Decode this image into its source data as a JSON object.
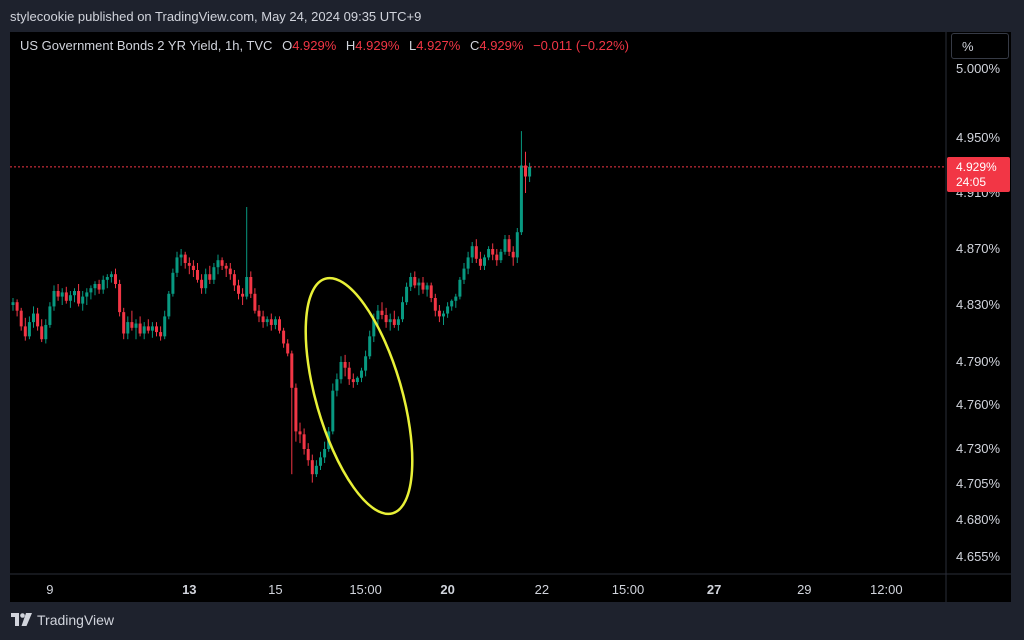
{
  "header": {
    "published": "stylecookie published on TradingView.com, May 24, 2024 09:35 UTC+9"
  },
  "legend": {
    "symbol": "US Government Bonds 2 YR Yield, 1h, TVC",
    "o_label": "O",
    "o_value": "4.929%",
    "h_label": "H",
    "h_value": "4.929%",
    "l_label": "L",
    "l_value": "4.927%",
    "c_label": "C",
    "c_value": "4.929%",
    "change": "−0.011 (−0.22%)"
  },
  "scale_button": "%",
  "price_tag": {
    "value": "4.929%",
    "countdown": "24:05"
  },
  "footer": {
    "brand": "TradingView"
  },
  "colors": {
    "up": "#089981",
    "down": "#f23645",
    "annotation": "#e8f037",
    "background": "#000000"
  },
  "chart_data": {
    "type": "candlestick",
    "timeframe": "1h",
    "y_axis": {
      "ticks": [
        5.0,
        4.95,
        4.91,
        4.87,
        4.83,
        4.79,
        4.76,
        4.73,
        4.705,
        4.68,
        4.655
      ],
      "tick_labels": [
        "5.000%",
        "4.950%",
        "4.910%",
        "4.870%",
        "4.830%",
        "4.790%",
        "4.760%",
        "4.730%",
        "4.705%",
        "4.680%",
        "4.655%"
      ],
      "scale": "non-linear"
    },
    "x_axis": {
      "tick_labels": [
        "9",
        "13",
        "15",
        "15:00",
        "20",
        "22",
        "15:00",
        "27",
        "29",
        "12:00"
      ],
      "bold": [
        false,
        true,
        false,
        false,
        true,
        false,
        false,
        true,
        false,
        false
      ],
      "tick_index": [
        9,
        43,
        64,
        86,
        106,
        129,
        150,
        171,
        193,
        213
      ]
    },
    "last_price": 4.929,
    "annotation": {
      "type": "ellipse",
      "color": "#e8f037",
      "label": ""
    },
    "candles": [
      [
        4.83,
        4.835,
        4.826,
        4.832
      ],
      [
        4.832,
        4.834,
        4.822,
        4.826
      ],
      [
        4.826,
        4.828,
        4.812,
        4.815
      ],
      [
        4.815,
        4.821,
        4.805,
        4.808
      ],
      [
        4.808,
        4.822,
        4.806,
        4.818
      ],
      [
        4.818,
        4.829,
        4.814,
        4.824
      ],
      [
        4.824,
        4.828,
        4.812,
        4.815
      ],
      [
        4.815,
        4.82,
        4.804,
        4.806
      ],
      [
        4.806,
        4.82,
        4.803,
        4.816
      ],
      [
        4.816,
        4.832,
        4.814,
        4.829
      ],
      [
        4.829,
        4.844,
        4.826,
        4.84
      ],
      [
        4.84,
        4.845,
        4.833,
        4.836
      ],
      [
        4.836,
        4.842,
        4.83,
        4.839
      ],
      [
        4.839,
        4.843,
        4.831,
        4.833
      ],
      [
        4.833,
        4.84,
        4.828,
        4.837
      ],
      [
        4.837,
        4.842,
        4.832,
        4.84
      ],
      [
        4.84,
        4.845,
        4.829,
        4.831
      ],
      [
        4.831,
        4.84,
        4.826,
        4.836
      ],
      [
        4.836,
        4.842,
        4.83,
        4.839
      ],
      [
        4.839,
        4.844,
        4.834,
        4.842
      ],
      [
        4.842,
        4.847,
        4.837,
        4.845
      ],
      [
        4.845,
        4.848,
        4.838,
        4.841
      ],
      [
        4.841,
        4.851,
        4.838,
        4.848
      ],
      [
        4.848,
        4.852,
        4.842,
        4.85
      ],
      [
        4.85,
        4.854,
        4.846,
        4.852
      ],
      [
        4.852,
        4.856,
        4.842,
        4.845
      ],
      [
        4.845,
        4.848,
        4.822,
        4.825
      ],
      [
        4.825,
        4.828,
        4.806,
        4.81
      ],
      [
        4.81,
        4.822,
        4.806,
        4.818
      ],
      [
        4.818,
        4.826,
        4.812,
        4.814
      ],
      [
        4.814,
        4.82,
        4.806,
        4.817
      ],
      [
        4.817,
        4.822,
        4.808,
        4.81
      ],
      [
        4.81,
        4.818,
        4.806,
        4.815
      ],
      [
        4.815,
        4.82,
        4.81,
        4.812
      ],
      [
        4.812,
        4.818,
        4.807,
        4.815
      ],
      [
        4.815,
        4.818,
        4.808,
        4.811
      ],
      [
        4.811,
        4.815,
        4.805,
        4.808
      ],
      [
        4.808,
        4.826,
        4.806,
        4.822
      ],
      [
        4.822,
        4.84,
        4.82,
        4.838
      ],
      [
        4.838,
        4.856,
        4.836,
        4.853
      ],
      [
        4.853,
        4.868,
        4.85,
        4.864
      ],
      [
        4.864,
        4.87,
        4.858,
        4.866
      ],
      [
        4.866,
        4.868,
        4.856,
        4.86
      ],
      [
        4.86,
        4.864,
        4.852,
        4.858
      ],
      [
        4.858,
        4.862,
        4.85,
        4.855
      ],
      [
        4.855,
        4.86,
        4.846,
        4.848
      ],
      [
        4.848,
        4.852,
        4.838,
        4.842
      ],
      [
        4.842,
        4.856,
        4.838,
        4.852
      ],
      [
        4.852,
        4.858,
        4.845,
        4.848
      ],
      [
        4.848,
        4.86,
        4.845,
        4.857
      ],
      [
        4.857,
        4.866,
        4.852,
        4.862
      ],
      [
        4.862,
        4.864,
        4.855,
        4.858
      ],
      [
        4.858,
        4.86,
        4.85,
        4.856
      ],
      [
        4.856,
        4.86,
        4.848,
        4.852
      ],
      [
        4.852,
        4.855,
        4.84,
        4.844
      ],
      [
        4.844,
        4.848,
        4.834,
        4.838
      ],
      [
        4.838,
        4.842,
        4.83,
        4.836
      ],
      [
        4.836,
        4.9,
        4.834,
        4.85
      ],
      [
        4.85,
        4.854,
        4.835,
        4.838
      ],
      [
        4.838,
        4.842,
        4.824,
        4.826
      ],
      [
        4.826,
        4.83,
        4.818,
        4.822
      ],
      [
        4.822,
        4.826,
        4.814,
        4.818
      ],
      [
        4.818,
        4.822,
        4.815,
        4.82
      ],
      [
        4.82,
        4.824,
        4.812,
        4.816
      ],
      [
        4.816,
        4.822,
        4.813,
        4.82
      ],
      [
        4.82,
        4.822,
        4.81,
        4.812
      ],
      [
        4.812,
        4.814,
        4.8,
        4.803
      ],
      [
        4.803,
        4.806,
        4.794,
        4.796
      ],
      [
        4.796,
        4.798,
        4.712,
        4.772
      ],
      [
        4.772,
        4.775,
        4.735,
        4.742
      ],
      [
        4.742,
        4.748,
        4.734,
        4.74
      ],
      [
        4.74,
        4.744,
        4.726,
        4.73
      ],
      [
        4.73,
        4.734,
        4.718,
        4.722
      ],
      [
        4.722,
        4.726,
        4.706,
        4.712
      ],
      [
        4.712,
        4.722,
        4.71,
        4.718
      ],
      [
        4.718,
        4.728,
        4.715,
        4.724
      ],
      [
        4.724,
        4.735,
        4.72,
        4.73
      ],
      [
        4.73,
        4.745,
        4.728,
        4.742
      ],
      [
        4.742,
        4.775,
        4.74,
        4.77
      ],
      [
        4.77,
        4.782,
        4.766,
        4.778
      ],
      [
        4.778,
        4.794,
        4.775,
        4.79
      ],
      [
        4.79,
        4.795,
        4.78,
        4.786
      ],
      [
        4.786,
        4.79,
        4.774,
        4.778
      ],
      [
        4.778,
        4.782,
        4.772,
        4.776
      ],
      [
        4.776,
        4.78,
        4.774,
        4.779
      ],
      [
        4.779,
        4.786,
        4.776,
        4.784
      ],
      [
        4.784,
        4.798,
        4.78,
        4.794
      ],
      [
        4.794,
        4.812,
        4.792,
        4.808
      ],
      [
        4.808,
        4.824,
        4.804,
        4.82
      ],
      [
        4.82,
        4.83,
        4.815,
        4.826
      ],
      [
        4.826,
        4.832,
        4.82,
        4.823
      ],
      [
        4.823,
        4.828,
        4.814,
        4.818
      ],
      [
        4.818,
        4.824,
        4.812,
        4.82
      ],
      [
        4.82,
        4.826,
        4.814,
        4.816
      ],
      [
        4.816,
        4.822,
        4.812,
        4.82
      ],
      [
        4.82,
        4.836,
        4.818,
        4.832
      ],
      [
        4.832,
        4.846,
        4.83,
        4.843
      ],
      [
        4.843,
        4.853,
        4.84,
        4.85
      ],
      [
        4.85,
        4.854,
        4.842,
        4.844
      ],
      [
        4.844,
        4.849,
        4.837,
        4.846
      ],
      [
        4.846,
        4.85,
        4.838,
        4.841
      ],
      [
        4.841,
        4.846,
        4.836,
        4.844
      ],
      [
        4.844,
        4.846,
        4.832,
        4.835
      ],
      [
        4.835,
        4.838,
        4.822,
        4.826
      ],
      [
        4.826,
        4.83,
        4.818,
        4.822
      ],
      [
        4.822,
        4.826,
        4.816,
        4.824
      ],
      [
        4.824,
        4.832,
        4.821,
        4.829
      ],
      [
        4.829,
        4.834,
        4.826,
        4.833
      ],
      [
        4.833,
        4.838,
        4.828,
        4.836
      ],
      [
        4.836,
        4.85,
        4.834,
        4.848
      ],
      [
        4.848,
        4.86,
        4.845,
        4.856
      ],
      [
        4.856,
        4.868,
        4.852,
        4.864
      ],
      [
        4.864,
        4.875,
        4.86,
        4.872
      ],
      [
        4.872,
        4.877,
        4.86,
        4.863
      ],
      [
        4.863,
        4.868,
        4.855,
        4.858
      ],
      [
        4.858,
        4.866,
        4.855,
        4.864
      ],
      [
        4.864,
        4.872,
        4.862,
        4.87
      ],
      [
        4.87,
        4.874,
        4.862,
        4.866
      ],
      [
        4.866,
        4.87,
        4.858,
        4.862
      ],
      [
        4.862,
        4.87,
        4.86,
        4.868
      ],
      [
        4.868,
        4.88,
        4.866,
        4.877
      ],
      [
        4.877,
        4.88,
        4.865,
        4.868
      ],
      [
        4.868,
        4.872,
        4.858,
        4.864
      ],
      [
        4.864,
        4.885,
        4.86,
        4.882
      ],
      [
        4.882,
        4.955,
        4.88,
        4.93
      ],
      [
        4.93,
        4.94,
        4.91,
        4.922
      ],
      [
        4.922,
        4.932,
        4.918,
        4.929
      ]
    ]
  }
}
